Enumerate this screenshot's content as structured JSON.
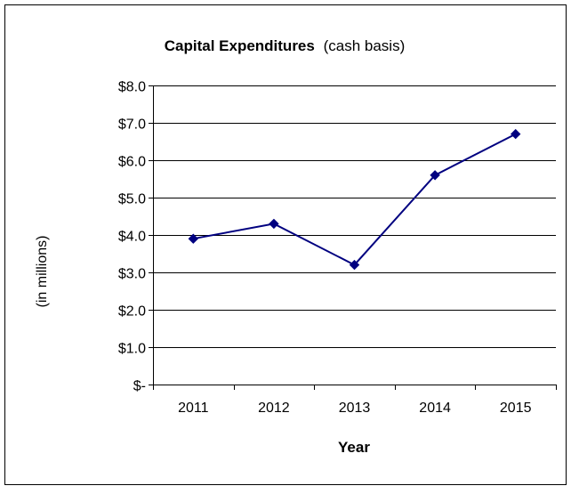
{
  "chart_data": {
    "type": "line",
    "title": "Capital Expenditures",
    "subtitle": "(cash basis)",
    "xlabel": "Year",
    "ylabel": "(in millions)",
    "categories": [
      "2011",
      "2012",
      "2013",
      "2014",
      "2015"
    ],
    "series": [
      {
        "values": [
          3.9,
          4.3,
          3.2,
          5.6,
          6.7
        ]
      }
    ],
    "ylim": [
      0,
      8
    ],
    "y_ticks": [
      0,
      1,
      2,
      3,
      4,
      5,
      6,
      7,
      8
    ],
    "y_tick_labels": [
      "$-",
      "$1.0",
      "$2.0",
      "$3.0",
      "$4.0",
      "$5.0",
      "$6.0",
      "$7.0",
      "$8.0"
    ],
    "grid": true,
    "legend": "none",
    "line_color": "#000080",
    "marker": "diamond"
  }
}
